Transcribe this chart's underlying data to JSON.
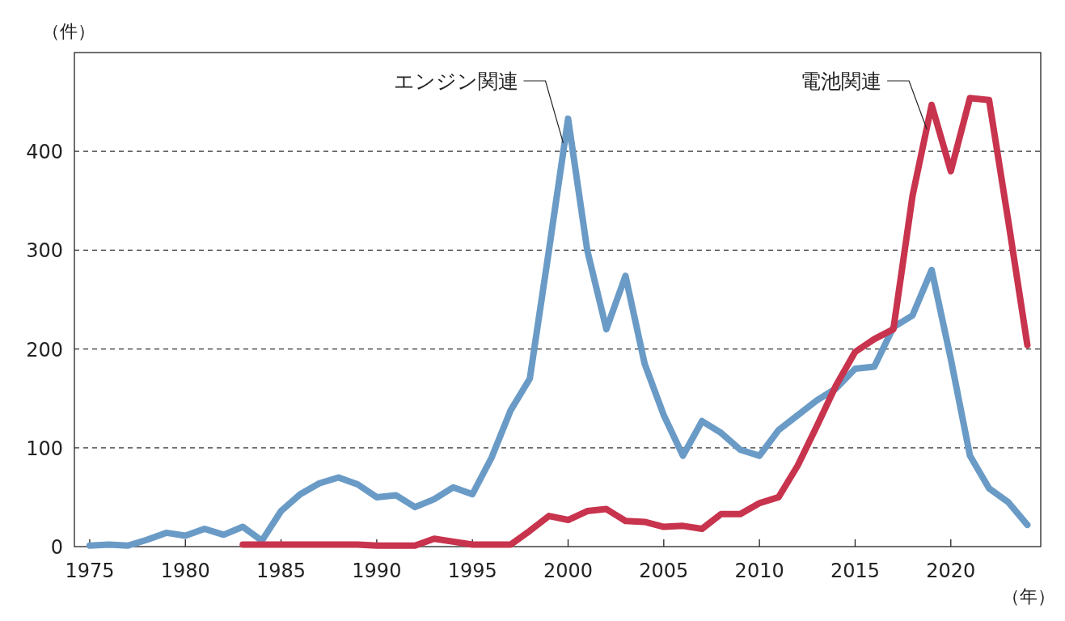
{
  "chart_data": {
    "type": "line",
    "ylabel": "（件）",
    "xlabel": "（年）",
    "x": [
      1975,
      1976,
      1977,
      1978,
      1979,
      1980,
      1981,
      1982,
      1983,
      1984,
      1985,
      1986,
      1987,
      1988,
      1989,
      1990,
      1991,
      1992,
      1993,
      1994,
      1995,
      1996,
      1997,
      1998,
      1999,
      2000,
      2001,
      2002,
      2003,
      2004,
      2005,
      2006,
      2007,
      2008,
      2009,
      2010,
      2011,
      2012,
      2013,
      2014,
      2015,
      2016,
      2017,
      2018,
      2019,
      2020,
      2021,
      2022,
      2023,
      2024
    ],
    "series": [
      {
        "name": "エンジン関連",
        "color": "#6a9bc6",
        "values": [
          1,
          2,
          1,
          7,
          14,
          11,
          18,
          12,
          20,
          6,
          36,
          53,
          64,
          70,
          63,
          50,
          52,
          40,
          48,
          60,
          53,
          90,
          138,
          170,
          300,
          433,
          300,
          220,
          274,
          185,
          133,
          92,
          127,
          115,
          98,
          92,
          118,
          133,
          148,
          160,
          180,
          182,
          222,
          234,
          280,
          190,
          92,
          59,
          45,
          22
        ]
      },
      {
        "name": "電池関連",
        "color": "#c8334d",
        "values": [
          null,
          null,
          null,
          null,
          null,
          null,
          null,
          null,
          2,
          2,
          2,
          2,
          2,
          2,
          2,
          1,
          1,
          1,
          8,
          5,
          2,
          2,
          2,
          16,
          31,
          27,
          36,
          38,
          26,
          25,
          20,
          21,
          18,
          33,
          33,
          44,
          50,
          82,
          122,
          163,
          197,
          210,
          220,
          355,
          447,
          380,
          454,
          452,
          330,
          204
        ]
      }
    ],
    "xlim": [
      1974.2,
      2024.7
    ],
    "xticks": [
      1975,
      1980,
      1985,
      1990,
      1995,
      2000,
      2005,
      2010,
      2015,
      2020
    ],
    "ylim": [
      0,
      500
    ],
    "yticks": [
      0,
      100,
      200,
      300,
      400
    ],
    "grid": "y",
    "marker": "none",
    "line_style": "solid"
  }
}
